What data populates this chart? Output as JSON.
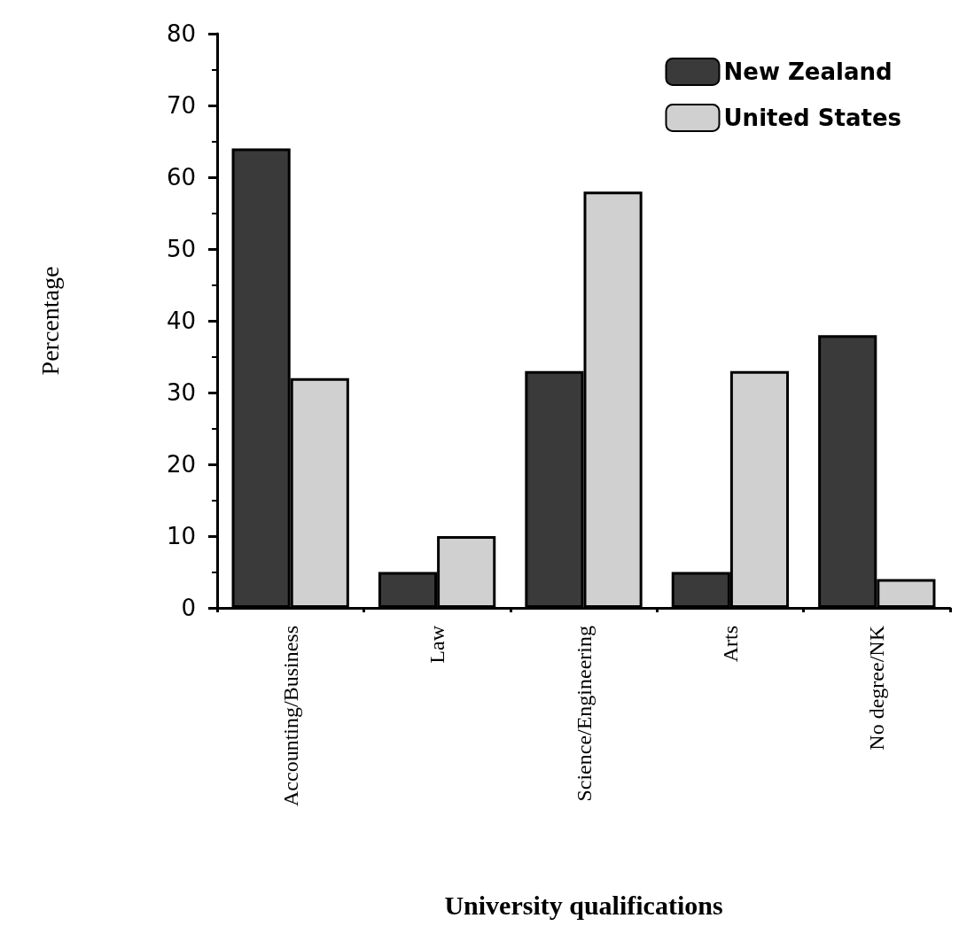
{
  "chart_data": {
    "type": "bar",
    "xlabel": "University qualifications",
    "ylabel": "Percentage",
    "categories": [
      "Accounting/Business",
      "Law",
      "Science/Engineering",
      "Arts",
      "No degree/NK"
    ],
    "series": [
      {
        "name": "New Zealand",
        "color": "#3a3a3a",
        "values": [
          64,
          5,
          33,
          5,
          38
        ]
      },
      {
        "name": "United States",
        "color": "#d0d0d0",
        "values": [
          32,
          10,
          58,
          33,
          4
        ]
      }
    ],
    "ylim": [
      0,
      80
    ],
    "yticks": [
      0,
      10,
      20,
      30,
      40,
      50,
      60,
      70,
      80
    ],
    "grid": false,
    "legend": "top right"
  }
}
